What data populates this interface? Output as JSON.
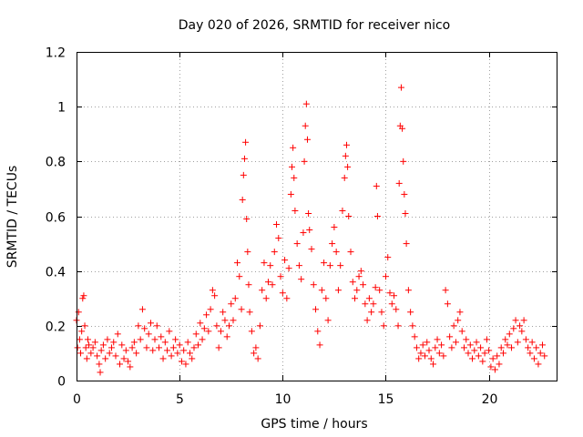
{
  "chart_data": {
    "type": "scatter",
    "title": "Day 020 of 2026, SRMTID for receiver nico",
    "xlabel": "GPS time / hours",
    "ylabel": "SRMTID / TECUs",
    "xlim": [
      0,
      23.33
    ],
    "ylim": [
      0,
      1.2
    ],
    "xticks": [
      0,
      5,
      10,
      15,
      20
    ],
    "xtick_labels": [
      "0",
      "5",
      "10",
      "15",
      "20"
    ],
    "yticks": [
      0,
      0.2,
      0.4,
      0.6,
      0.8,
      1,
      1.2
    ],
    "ytick_labels": [
      "0",
      "0.2",
      "0.4",
      "0.6",
      "0.8",
      "1",
      "1.2"
    ],
    "grid": true,
    "marker": "+",
    "color": "#ff0000",
    "series": [
      {
        "name": "SRMTID",
        "points": [
          [
            0.0,
            0.22
          ],
          [
            0.05,
            0.12
          ],
          [
            0.1,
            0.25
          ],
          [
            0.15,
            0.15
          ],
          [
            0.2,
            0.1
          ],
          [
            0.25,
            0.18
          ],
          [
            0.3,
            0.3
          ],
          [
            0.35,
            0.31
          ],
          [
            0.4,
            0.2
          ],
          [
            0.45,
            0.12
          ],
          [
            0.5,
            0.08
          ],
          [
            0.55,
            0.15
          ],
          [
            0.6,
            0.13
          ],
          [
            0.7,
            0.1
          ],
          [
            0.8,
            0.12
          ],
          [
            0.9,
            0.14
          ],
          [
            1.0,
            0.09
          ],
          [
            1.1,
            0.06
          ],
          [
            1.15,
            0.03
          ],
          [
            1.2,
            0.11
          ],
          [
            1.3,
            0.13
          ],
          [
            1.4,
            0.08
          ],
          [
            1.5,
            0.15
          ],
          [
            1.6,
            0.1
          ],
          [
            1.7,
            0.12
          ],
          [
            1.8,
            0.14
          ],
          [
            1.9,
            0.09
          ],
          [
            2.0,
            0.17
          ],
          [
            2.1,
            0.06
          ],
          [
            2.2,
            0.13
          ],
          [
            2.3,
            0.08
          ],
          [
            2.4,
            0.11
          ],
          [
            2.5,
            0.07
          ],
          [
            2.6,
            0.05
          ],
          [
            2.7,
            0.12
          ],
          [
            2.8,
            0.14
          ],
          [
            2.9,
            0.1
          ],
          [
            3.0,
            0.2
          ],
          [
            3.1,
            0.15
          ],
          [
            3.2,
            0.26
          ],
          [
            3.3,
            0.19
          ],
          [
            3.4,
            0.12
          ],
          [
            3.5,
            0.17
          ],
          [
            3.6,
            0.21
          ],
          [
            3.7,
            0.11
          ],
          [
            3.8,
            0.15
          ],
          [
            3.9,
            0.2
          ],
          [
            4.0,
            0.12
          ],
          [
            4.1,
            0.16
          ],
          [
            4.2,
            0.08
          ],
          [
            4.3,
            0.14
          ],
          [
            4.4,
            0.11
          ],
          [
            4.5,
            0.18
          ],
          [
            4.6,
            0.09
          ],
          [
            4.7,
            0.12
          ],
          [
            4.8,
            0.15
          ],
          [
            4.9,
            0.1
          ],
          [
            5.0,
            0.13
          ],
          [
            5.1,
            0.07
          ],
          [
            5.2,
            0.11
          ],
          [
            5.3,
            0.06
          ],
          [
            5.4,
            0.14
          ],
          [
            5.5,
            0.1
          ],
          [
            5.6,
            0.08
          ],
          [
            5.7,
            0.12
          ],
          [
            5.8,
            0.17
          ],
          [
            5.9,
            0.13
          ],
          [
            6.0,
            0.21
          ],
          [
            6.1,
            0.15
          ],
          [
            6.2,
            0.19
          ],
          [
            6.3,
            0.24
          ],
          [
            6.4,
            0.18
          ],
          [
            6.5,
            0.26
          ],
          [
            6.6,
            0.33
          ],
          [
            6.7,
            0.31
          ],
          [
            6.8,
            0.2
          ],
          [
            6.9,
            0.12
          ],
          [
            7.0,
            0.18
          ],
          [
            7.1,
            0.25
          ],
          [
            7.2,
            0.22
          ],
          [
            7.3,
            0.16
          ],
          [
            7.4,
            0.2
          ],
          [
            7.5,
            0.28
          ],
          [
            7.6,
            0.22
          ],
          [
            7.7,
            0.3
          ],
          [
            7.8,
            0.43
          ],
          [
            7.9,
            0.38
          ],
          [
            8.0,
            0.26
          ],
          [
            8.05,
            0.66
          ],
          [
            8.1,
            0.75
          ],
          [
            8.15,
            0.81
          ],
          [
            8.2,
            0.87
          ],
          [
            8.25,
            0.59
          ],
          [
            8.3,
            0.47
          ],
          [
            8.35,
            0.35
          ],
          [
            8.4,
            0.25
          ],
          [
            8.5,
            0.18
          ],
          [
            8.6,
            0.1
          ],
          [
            8.7,
            0.12
          ],
          [
            8.8,
            0.08
          ],
          [
            8.9,
            0.2
          ],
          [
            9.0,
            0.33
          ],
          [
            9.1,
            0.43
          ],
          [
            9.2,
            0.3
          ],
          [
            9.3,
            0.36
          ],
          [
            9.4,
            0.42
          ],
          [
            9.5,
            0.35
          ],
          [
            9.6,
            0.47
          ],
          [
            9.7,
            0.57
          ],
          [
            9.8,
            0.52
          ],
          [
            9.9,
            0.38
          ],
          [
            10.0,
            0.32
          ],
          [
            10.1,
            0.44
          ],
          [
            10.2,
            0.3
          ],
          [
            10.3,
            0.41
          ],
          [
            10.4,
            0.68
          ],
          [
            10.45,
            0.78
          ],
          [
            10.5,
            0.85
          ],
          [
            10.55,
            0.74
          ],
          [
            10.6,
            0.62
          ],
          [
            10.7,
            0.5
          ],
          [
            10.8,
            0.42
          ],
          [
            10.9,
            0.37
          ],
          [
            11.0,
            0.54
          ],
          [
            11.05,
            0.8
          ],
          [
            11.1,
            0.93
          ],
          [
            11.15,
            1.01
          ],
          [
            11.2,
            0.88
          ],
          [
            11.25,
            0.61
          ],
          [
            11.3,
            0.55
          ],
          [
            11.4,
            0.48
          ],
          [
            11.5,
            0.35
          ],
          [
            11.6,
            0.26
          ],
          [
            11.7,
            0.18
          ],
          [
            11.8,
            0.13
          ],
          [
            11.9,
            0.33
          ],
          [
            12.0,
            0.43
          ],
          [
            12.1,
            0.3
          ],
          [
            12.2,
            0.22
          ],
          [
            12.3,
            0.42
          ],
          [
            12.4,
            0.5
          ],
          [
            12.5,
            0.56
          ],
          [
            12.6,
            0.47
          ],
          [
            12.7,
            0.33
          ],
          [
            12.8,
            0.42
          ],
          [
            12.9,
            0.62
          ],
          [
            13.0,
            0.74
          ],
          [
            13.05,
            0.82
          ],
          [
            13.1,
            0.86
          ],
          [
            13.15,
            0.78
          ],
          [
            13.2,
            0.6
          ],
          [
            13.3,
            0.47
          ],
          [
            13.4,
            0.36
          ],
          [
            13.5,
            0.3
          ],
          [
            13.6,
            0.33
          ],
          [
            13.7,
            0.38
          ],
          [
            13.8,
            0.4
          ],
          [
            13.9,
            0.35
          ],
          [
            14.0,
            0.28
          ],
          [
            14.1,
            0.22
          ],
          [
            14.2,
            0.3
          ],
          [
            14.3,
            0.25
          ],
          [
            14.4,
            0.28
          ],
          [
            14.5,
            0.34
          ],
          [
            14.55,
            0.71
          ],
          [
            14.6,
            0.6
          ],
          [
            14.7,
            0.33
          ],
          [
            14.8,
            0.25
          ],
          [
            14.9,
            0.2
          ],
          [
            15.0,
            0.38
          ],
          [
            15.1,
            0.45
          ],
          [
            15.2,
            0.32
          ],
          [
            15.3,
            0.28
          ],
          [
            15.4,
            0.31
          ],
          [
            15.5,
            0.26
          ],
          [
            15.6,
            0.2
          ],
          [
            15.65,
            0.72
          ],
          [
            15.7,
            0.93
          ],
          [
            15.75,
            1.07
          ],
          [
            15.8,
            0.92
          ],
          [
            15.85,
            0.8
          ],
          [
            15.9,
            0.68
          ],
          [
            15.95,
            0.61
          ],
          [
            16.0,
            0.5
          ],
          [
            16.1,
            0.33
          ],
          [
            16.2,
            0.25
          ],
          [
            16.3,
            0.2
          ],
          [
            16.4,
            0.16
          ],
          [
            16.5,
            0.12
          ],
          [
            16.6,
            0.08
          ],
          [
            16.7,
            0.1
          ],
          [
            16.8,
            0.13
          ],
          [
            16.9,
            0.09
          ],
          [
            17.0,
            0.14
          ],
          [
            17.1,
            0.11
          ],
          [
            17.2,
            0.08
          ],
          [
            17.3,
            0.06
          ],
          [
            17.4,
            0.12
          ],
          [
            17.5,
            0.15
          ],
          [
            17.6,
            0.1
          ],
          [
            17.7,
            0.13
          ],
          [
            17.8,
            0.09
          ],
          [
            17.9,
            0.33
          ],
          [
            18.0,
            0.28
          ],
          [
            18.1,
            0.16
          ],
          [
            18.2,
            0.12
          ],
          [
            18.3,
            0.2
          ],
          [
            18.4,
            0.14
          ],
          [
            18.5,
            0.22
          ],
          [
            18.6,
            0.25
          ],
          [
            18.7,
            0.18
          ],
          [
            18.8,
            0.12
          ],
          [
            18.9,
            0.15
          ],
          [
            19.0,
            0.1
          ],
          [
            19.1,
            0.13
          ],
          [
            19.2,
            0.08
          ],
          [
            19.3,
            0.11
          ],
          [
            19.4,
            0.14
          ],
          [
            19.5,
            0.09
          ],
          [
            19.6,
            0.12
          ],
          [
            19.7,
            0.07
          ],
          [
            19.8,
            0.1
          ],
          [
            19.9,
            0.15
          ],
          [
            20.0,
            0.11
          ],
          [
            20.1,
            0.05
          ],
          [
            20.2,
            0.08
          ],
          [
            20.3,
            0.04
          ],
          [
            20.4,
            0.09
          ],
          [
            20.5,
            0.06
          ],
          [
            20.6,
            0.12
          ],
          [
            20.7,
            0.1
          ],
          [
            20.8,
            0.15
          ],
          [
            20.9,
            0.13
          ],
          [
            21.0,
            0.17
          ],
          [
            21.1,
            0.12
          ],
          [
            21.2,
            0.19
          ],
          [
            21.3,
            0.22
          ],
          [
            21.4,
            0.14
          ],
          [
            21.5,
            0.2
          ],
          [
            21.6,
            0.18
          ],
          [
            21.7,
            0.22
          ],
          [
            21.8,
            0.15
          ],
          [
            21.9,
            0.12
          ],
          [
            22.0,
            0.1
          ],
          [
            22.1,
            0.14
          ],
          [
            22.2,
            0.08
          ],
          [
            22.3,
            0.12
          ],
          [
            22.4,
            0.06
          ],
          [
            22.5,
            0.1
          ],
          [
            22.6,
            0.13
          ],
          [
            22.7,
            0.09
          ]
        ]
      }
    ]
  }
}
